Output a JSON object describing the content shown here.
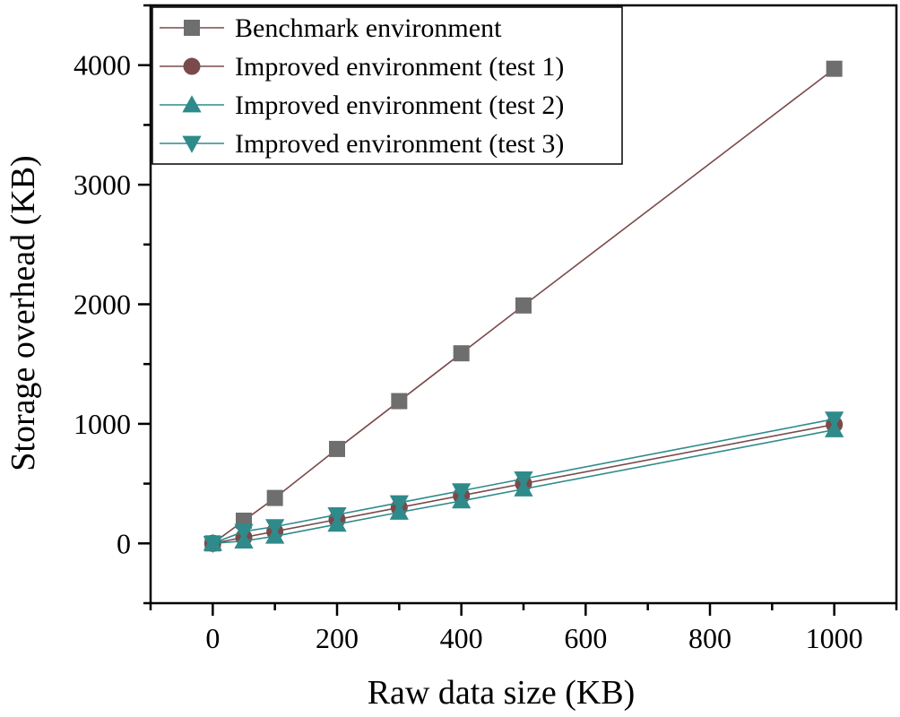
{
  "chart_data": {
    "type": "line",
    "title": "",
    "xlabel": "Raw data size (KB)",
    "ylabel": "Storage overhead (KB)",
    "xlim": [
      -100,
      1100
    ],
    "ylim": [
      -500,
      4500
    ],
    "xticks": [
      0,
      200,
      400,
      600,
      800,
      1000
    ],
    "yticks": [
      0,
      1000,
      2000,
      3000,
      4000
    ],
    "grid": false,
    "legend_position": "top-left",
    "series": [
      {
        "name": "Benchmark environment",
        "marker": "square",
        "line_color": "#7a4a4a",
        "marker_color": "#6e6e6e",
        "x": [
          0,
          50,
          100,
          200,
          300,
          400,
          500,
          1000
        ],
        "y": [
          0,
          190,
          380,
          790,
          1190,
          1590,
          1990,
          3970
        ]
      },
      {
        "name": "Improved environment (test 1)",
        "marker": "circle",
        "line_color": "#7a4a4a",
        "marker_color": "#7a4a4a",
        "x": [
          0,
          50,
          100,
          200,
          300,
          400,
          500,
          1000
        ],
        "y": [
          0,
          50,
          100,
          200,
          300,
          400,
          500,
          995
        ]
      },
      {
        "name": "Improved environment (test 2)",
        "marker": "triangle-up",
        "line_color": "#2f8b8b",
        "marker_color": "#2f8b8b",
        "x": [
          0,
          50,
          100,
          200,
          300,
          400,
          500,
          1000
        ],
        "y": [
          0,
          20,
          60,
          160,
          260,
          355,
          455,
          950
        ]
      },
      {
        "name": "Improved environment (test 3)",
        "marker": "triangle-down",
        "line_color": "#2f8b8b",
        "marker_color": "#2f8b8b",
        "x": [
          0,
          50,
          100,
          200,
          300,
          400,
          500,
          1000
        ],
        "y": [
          0,
          100,
          140,
          240,
          340,
          440,
          540,
          1040
        ]
      }
    ]
  }
}
